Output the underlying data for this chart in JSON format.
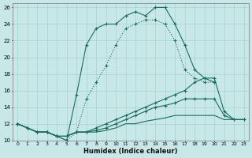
{
  "xlabel": "Humidex (Indice chaleur)",
  "bg_color": "#c8e8e8",
  "line_color": "#1a6b5e",
  "grid_color": "#a8d0d0",
  "xlim": [
    -0.5,
    23.5
  ],
  "ylim": [
    10,
    26.5
  ],
  "xtick_labels": [
    "0",
    "1",
    "2",
    "3",
    "4",
    "5",
    "6",
    "7",
    "8",
    "9",
    "10",
    "11",
    "12",
    "13",
    "14",
    "15",
    "16",
    "17",
    "18",
    "19",
    "20",
    "21",
    "22",
    "23"
  ],
  "xticks": [
    0,
    1,
    2,
    3,
    4,
    5,
    6,
    7,
    8,
    9,
    10,
    11,
    12,
    13,
    14,
    15,
    16,
    17,
    18,
    19,
    20,
    21,
    22,
    23
  ],
  "yticks": [
    10,
    12,
    14,
    16,
    18,
    20,
    22,
    24,
    26
  ],
  "curves": [
    {
      "x": [
        0,
        1,
        2,
        3,
        4,
        5,
        6,
        7,
        8,
        9,
        10,
        11,
        12,
        13,
        14,
        15,
        16,
        17,
        18,
        19,
        20
      ],
      "y": [
        12,
        11.5,
        11,
        11,
        10.5,
        10,
        15.5,
        21.5,
        23.5,
        24,
        24,
        25,
        25.5,
        25,
        26,
        26,
        24,
        21.5,
        18.5,
        17.5,
        17
      ],
      "marker": true,
      "linestyle": "-"
    },
    {
      "x": [
        0,
        1,
        2,
        3,
        4,
        5,
        6,
        7,
        8,
        9,
        10,
        11,
        12,
        13,
        14,
        15,
        16,
        17,
        18,
        19,
        20
      ],
      "y": [
        12,
        11.5,
        11,
        11,
        10.5,
        10,
        11,
        15,
        17,
        19,
        21.5,
        23.5,
        24,
        24.5,
        24.5,
        24,
        22,
        18.5,
        17.5,
        17,
        17
      ],
      "marker": true,
      "linestyle": ":"
    },
    {
      "x": [
        0,
        1,
        2,
        3,
        4,
        5,
        6,
        7,
        8,
        9,
        10,
        11,
        12,
        13,
        14,
        15,
        16,
        17,
        18,
        19,
        20,
        21,
        22,
        23
      ],
      "y": [
        12,
        11.5,
        11,
        11,
        10.5,
        10.5,
        11,
        11,
        11.5,
        12,
        12.5,
        13,
        13.5,
        14,
        14.5,
        15,
        15.5,
        16,
        17,
        17.5,
        17.5,
        13.5,
        12.5,
        12.5
      ],
      "marker": true,
      "linestyle": "-"
    },
    {
      "x": [
        0,
        1,
        2,
        3,
        4,
        5,
        6,
        7,
        8,
        9,
        10,
        11,
        12,
        13,
        14,
        15,
        16,
        17,
        18,
        19,
        20,
        21,
        22,
        23
      ],
      "y": [
        12,
        11.5,
        11,
        11,
        10.5,
        10.5,
        11,
        11,
        11.2,
        11.5,
        12,
        12.5,
        13,
        13.5,
        14,
        14.2,
        14.5,
        15,
        15,
        15,
        15,
        13,
        12.5,
        12.5
      ],
      "marker": true,
      "linestyle": "-"
    },
    {
      "x": [
        0,
        1,
        2,
        3,
        4,
        5,
        6,
        7,
        8,
        9,
        10,
        11,
        12,
        13,
        14,
        15,
        16,
        17,
        18,
        19,
        20,
        21,
        22,
        23
      ],
      "y": [
        12,
        11.5,
        11,
        11,
        10.5,
        10.5,
        11,
        11,
        11,
        11.2,
        11.5,
        12,
        12,
        12.3,
        12.5,
        12.7,
        13,
        13,
        13,
        13,
        13,
        12.5,
        12.5,
        12.5
      ],
      "marker": false,
      "linestyle": "-"
    }
  ]
}
